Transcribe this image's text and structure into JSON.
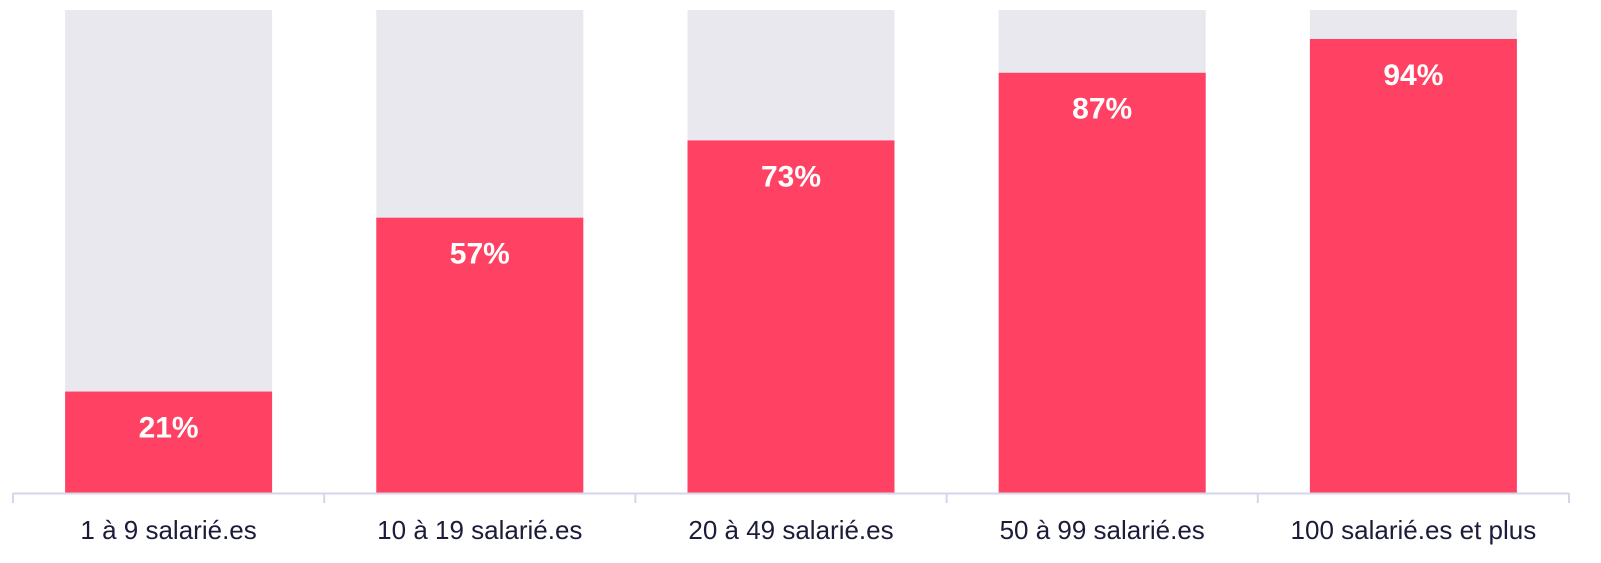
{
  "chart_data": {
    "type": "bar",
    "categories": [
      "1 à 9 salarié.es",
      "10 à 19 salarié.es",
      "20 à 49 salarié.es",
      "50 à 99 salarié.es",
      "100 salarié.es et plus"
    ],
    "values": [
      21,
      57,
      73,
      87,
      94
    ],
    "value_labels": [
      "21%",
      "57%",
      "73%",
      "87%",
      "94%"
    ],
    "color": "#ff4263",
    "track_color": "#e8e8ee",
    "ylim": [
      0,
      100
    ]
  }
}
